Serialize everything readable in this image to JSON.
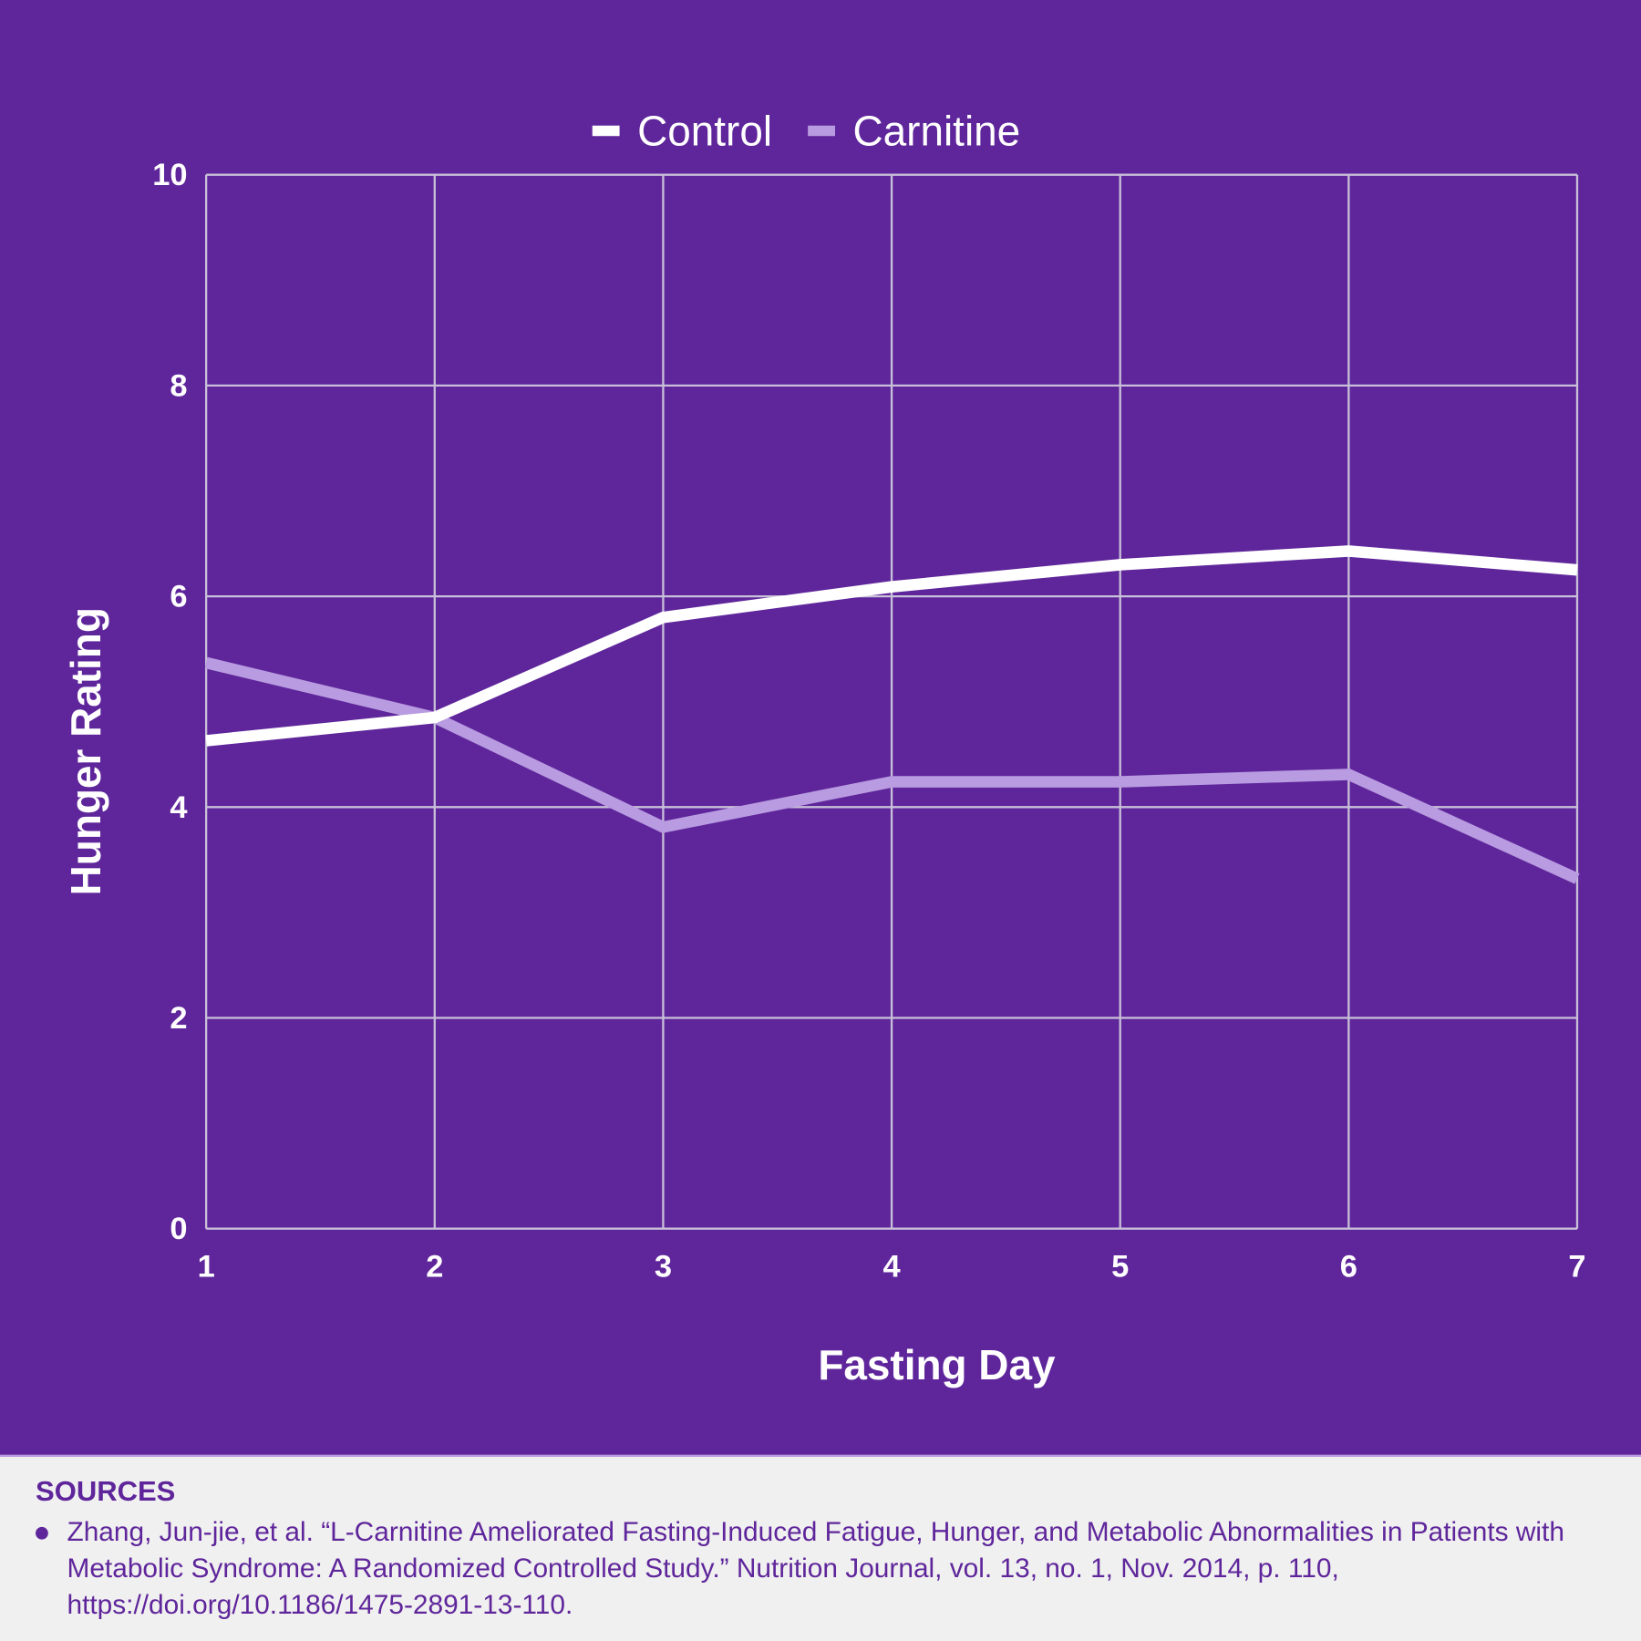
{
  "chart_data": {
    "type": "line",
    "title": "",
    "xlabel": "Fasting Day",
    "ylabel": "Hunger Rating",
    "x": [
      1,
      2,
      3,
      4,
      5,
      6,
      7
    ],
    "xticks": [
      "1",
      "2",
      "3",
      "4",
      "5",
      "6",
      "7"
    ],
    "yticks": [
      "0",
      "2",
      "4",
      "6",
      "8",
      "10"
    ],
    "ylim": [
      0,
      10
    ],
    "xlim": [
      1,
      7
    ],
    "grid": true,
    "legend_position": "top-center",
    "series": [
      {
        "name": "Control",
        "color": "#ffffff",
        "values": [
          4.63,
          4.85,
          5.8,
          6.09,
          6.3,
          6.43,
          6.25
        ]
      },
      {
        "name": "Carnitine",
        "color": "#b89be0",
        "values": [
          5.37,
          4.85,
          3.81,
          4.24,
          4.24,
          4.31,
          3.32
        ]
      }
    ]
  },
  "sources": {
    "title": "SOURCES",
    "items": [
      "Zhang, Jun-jie, et al. “L-Carnitine Ameliorated Fasting-Induced Fatigue, Hunger, and Metabolic Abnormalities in Patients with Metabolic Syndrome: A Randomized Controlled Study.” Nutrition Journal, vol. 13, no. 1, Nov. 2014, p. 110, https://doi.org/10.1186/1475-2891-13-110."
    ]
  },
  "colors": {
    "background": "#5f269b",
    "grid": "#c8c0d8",
    "text": "#ffffff"
  }
}
